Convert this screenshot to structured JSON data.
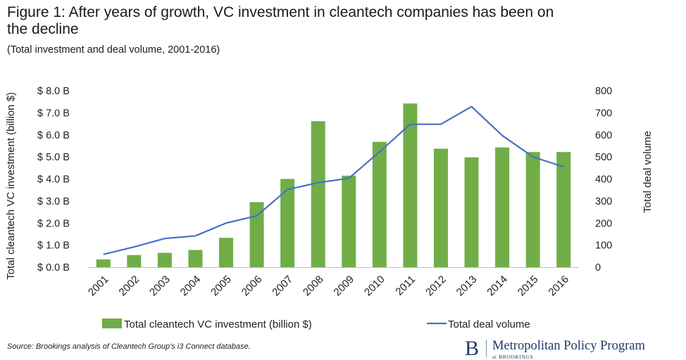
{
  "header": {
    "title": "Figure 1: After years of growth, VC investment in cleantech companies has been on the decline",
    "subtitle": "(Total investment and deal volume, 2001-2016)"
  },
  "footer": {
    "source": "Source: Brookings analysis of Cleantech Group's i3 Connect database.",
    "brand_initial": "B",
    "brand_name": "Metropolitan Policy Program",
    "brand_sub": "at BROOKINGS"
  },
  "colors": {
    "bar": "#70ad47",
    "line": "#4472c4"
  },
  "chart_data": {
    "type": "bar",
    "categories": [
      "2001",
      "2002",
      "2003",
      "2004",
      "2005",
      "2006",
      "2007",
      "2008",
      "2009",
      "2010",
      "2011",
      "2012",
      "2013",
      "2014",
      "2015",
      "2016"
    ],
    "series": [
      {
        "name": "Total cleantech VC investment (billion $)",
        "type": "bar",
        "axis": "left",
        "values": [
          0.35,
          0.55,
          0.65,
          0.78,
          1.33,
          2.95,
          4.0,
          6.62,
          4.15,
          5.68,
          7.42,
          5.37,
          4.98,
          5.43,
          5.22,
          5.22
        ]
      },
      {
        "name": "Total deal volume",
        "type": "line",
        "axis": "right",
        "values": [
          58,
          92,
          130,
          142,
          200,
          233,
          352,
          383,
          403,
          523,
          648,
          648,
          728,
          597,
          500,
          455
        ]
      }
    ],
    "ylabel": "Total cleantech VC investment (billion $)",
    "ylabel_right": "Total deal volume",
    "ylim": [
      0,
      8
    ],
    "ylim_right": [
      0,
      800
    ],
    "yticks": [
      "$ 0.0 B",
      "$ 1.0 B",
      "$ 2.0 B",
      "$ 3.0 B",
      "$ 4.0 B",
      "$ 5.0 B",
      "$ 6.0 B",
      "$ 7.0 B",
      "$ 8.0 B"
    ],
    "yticks_right": [
      "0",
      "100",
      "200",
      "300",
      "400",
      "500",
      "600",
      "700",
      "800"
    ],
    "grid": false,
    "legend_position": "bottom"
  }
}
